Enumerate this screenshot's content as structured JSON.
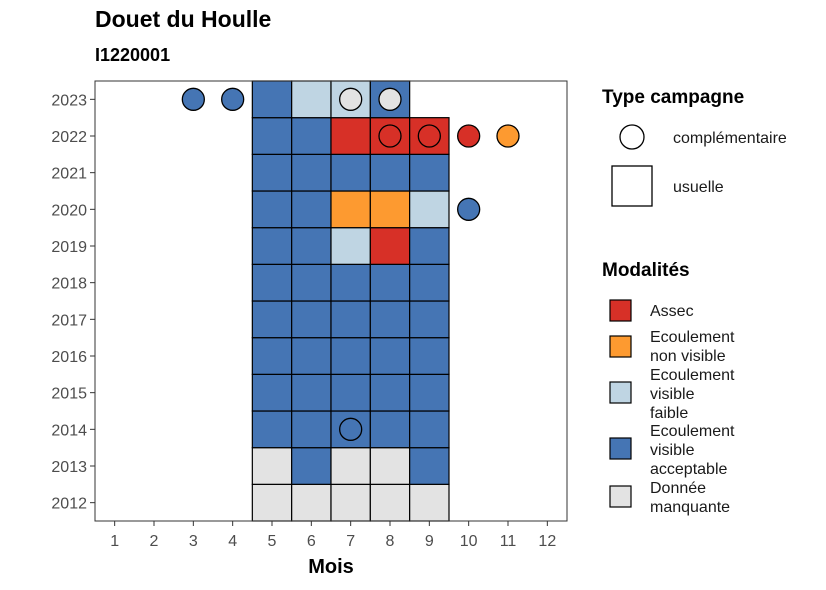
{
  "title": "Douet du Houlle",
  "subtitle": "I1220001",
  "chart_data": {
    "type": "heatmap",
    "xlabel": "Mois",
    "ylabel": "",
    "x_ticks": [
      1,
      2,
      3,
      4,
      5,
      6,
      7,
      8,
      9,
      10,
      11,
      12
    ],
    "y_ticks": [
      2012,
      2013,
      2014,
      2015,
      2016,
      2017,
      2018,
      2019,
      2020,
      2021,
      2022,
      2023
    ],
    "xlim": [
      0.5,
      12.5
    ],
    "ylim": [
      2011.5,
      2023.5
    ],
    "colors": {
      "Assec": "#d73027",
      "Ecoulement non visible": "#fd9a30",
      "Ecoulement visible faible": "#bfd5e3",
      "Ecoulement visible acceptable": "#4575b4",
      "Donnée manquante": "#e3e3e3"
    },
    "usuelle": [
      {
        "year": 2012,
        "months": [
          "Donnée manquante",
          "Donnée manquante",
          "Donnée manquante",
          "Donnée manquante",
          "Donnée manquante"
        ]
      },
      {
        "year": 2013,
        "months": [
          "Donnée manquante",
          "Ecoulement visible acceptable",
          "Donnée manquante",
          "Donnée manquante",
          "Ecoulement visible acceptable"
        ]
      },
      {
        "year": 2014,
        "months": [
          "Ecoulement visible acceptable",
          "Ecoulement visible acceptable",
          "Ecoulement visible acceptable",
          "Ecoulement visible acceptable",
          "Ecoulement visible acceptable"
        ]
      },
      {
        "year": 2015,
        "months": [
          "Ecoulement visible acceptable",
          "Ecoulement visible acceptable",
          "Ecoulement visible acceptable",
          "Ecoulement visible acceptable",
          "Ecoulement visible acceptable"
        ]
      },
      {
        "year": 2016,
        "months": [
          "Ecoulement visible acceptable",
          "Ecoulement visible acceptable",
          "Ecoulement visible acceptable",
          "Ecoulement visible acceptable",
          "Ecoulement visible acceptable"
        ]
      },
      {
        "year": 2017,
        "months": [
          "Ecoulement visible acceptable",
          "Ecoulement visible acceptable",
          "Ecoulement visible acceptable",
          "Ecoulement visible acceptable",
          "Ecoulement visible acceptable"
        ]
      },
      {
        "year": 2018,
        "months": [
          "Ecoulement visible acceptable",
          "Ecoulement visible acceptable",
          "Ecoulement visible acceptable",
          "Ecoulement visible acceptable",
          "Ecoulement visible acceptable"
        ]
      },
      {
        "year": 2019,
        "months": [
          "Ecoulement visible acceptable",
          "Ecoulement visible acceptable",
          "Ecoulement visible faible",
          "Assec",
          "Ecoulement visible acceptable"
        ]
      },
      {
        "year": 2020,
        "months": [
          "Ecoulement visible acceptable",
          "Ecoulement visible acceptable",
          "Ecoulement non visible",
          "Ecoulement non visible",
          "Ecoulement visible faible"
        ]
      },
      {
        "year": 2021,
        "months": [
          "Ecoulement visible acceptable",
          "Ecoulement visible acceptable",
          "Ecoulement visible acceptable",
          "Ecoulement visible acceptable",
          "Ecoulement visible acceptable"
        ]
      },
      {
        "year": 2022,
        "months": [
          "Ecoulement visible acceptable",
          "Ecoulement visible acceptable",
          "Assec",
          "Assec",
          "Assec"
        ]
      },
      {
        "year": 2023,
        "months": [
          "Ecoulement visible acceptable",
          "Ecoulement visible faible",
          "Ecoulement visible faible",
          "Ecoulement visible acceptable",
          null
        ]
      }
    ],
    "usuelle_first_month": 5,
    "complementaire": [
      {
        "year": 2023,
        "month": 3,
        "value": "Ecoulement visible acceptable"
      },
      {
        "year": 2023,
        "month": 4,
        "value": "Ecoulement visible acceptable"
      },
      {
        "year": 2023,
        "month": 7,
        "value": "Donnée manquante"
      },
      {
        "year": 2023,
        "month": 8,
        "value": "Donnée manquante"
      },
      {
        "year": 2022,
        "month": 8,
        "value": "Assec"
      },
      {
        "year": 2022,
        "month": 9,
        "value": "Assec"
      },
      {
        "year": 2022,
        "month": 10,
        "value": "Assec"
      },
      {
        "year": 2022,
        "month": 11,
        "value": "Ecoulement non visible"
      },
      {
        "year": 2020,
        "month": 10,
        "value": "Ecoulement visible acceptable"
      },
      {
        "year": 2014,
        "month": 7,
        "value": "Ecoulement visible acceptable"
      }
    ]
  },
  "legend_type": {
    "title": "Type campagne",
    "items": [
      "complémentaire",
      "usuelle"
    ]
  },
  "legend_modalites": {
    "title": "Modalités",
    "items": [
      {
        "lines": [
          "Assec"
        ],
        "key": "Assec"
      },
      {
        "lines": [
          "Ecoulement",
          "non visible"
        ],
        "key": "Ecoulement non visible"
      },
      {
        "lines": [
          "Ecoulement",
          "visible",
          "faible"
        ],
        "key": "Ecoulement visible faible"
      },
      {
        "lines": [
          "Ecoulement",
          "visible",
          "acceptable"
        ],
        "key": "Ecoulement visible acceptable"
      },
      {
        "lines": [
          "Donnée",
          "manquante"
        ],
        "key": "Donnée manquante"
      }
    ]
  }
}
